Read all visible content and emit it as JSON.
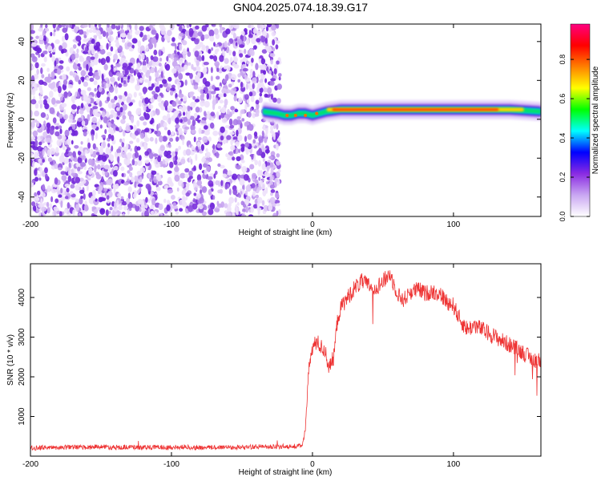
{
  "title": "GN04.2025.074.18.39.G17",
  "chart_data": [
    {
      "type": "heatmap",
      "xlabel": "Height of straight line (km)",
      "ylabel": "Frequency (Hz)",
      "xlim": [
        -200,
        162
      ],
      "ylim": [
        -50,
        49
      ],
      "x_ticks": [
        -200,
        -100,
        0,
        100
      ],
      "x_tick_labels": [
        "-200",
        "-100",
        "0",
        "100"
      ],
      "y_ticks": [
        -40,
        -20,
        0,
        20,
        40
      ],
      "y_tick_labels": [
        "-40",
        "-20",
        "0",
        "20",
        "40"
      ],
      "noise_region_x": [
        -200,
        -23
      ],
      "signal_band": {
        "x_start": -35,
        "x_end": 162,
        "frequency_points": [
          [
            -35,
            4
          ],
          [
            -25,
            3
          ],
          [
            -20,
            2
          ],
          [
            -15,
            2
          ],
          [
            -10,
            3
          ],
          [
            -5,
            3
          ],
          [
            0,
            2
          ],
          [
            5,
            3
          ],
          [
            10,
            4
          ],
          [
            20,
            5
          ],
          [
            40,
            5
          ],
          [
            60,
            5
          ],
          [
            80,
            5
          ],
          [
            100,
            5
          ],
          [
            120,
            5
          ],
          [
            140,
            5
          ],
          [
            162,
            4
          ]
        ]
      },
      "colorbar": {
        "label": "Normalized spectral amplitude",
        "range": [
          0,
          0.98
        ],
        "ticks": [
          0.0,
          0.2,
          0.4,
          0.6,
          0.8
        ],
        "tick_labels": [
          "0.0",
          "0.2",
          "0.4",
          "0.6",
          "0.8"
        ],
        "colors": [
          "#ffffff",
          "#c9a7f2",
          "#8a2be2",
          "#0000ff",
          "#00ffff",
          "#00ff00",
          "#ffff00",
          "#ff8000",
          "#ff0000",
          "#ff0080"
        ]
      }
    },
    {
      "type": "line",
      "xlabel": "Height of straight line (km)",
      "ylabel": "SNR (10 * v/v)",
      "xlim": [
        -200,
        162
      ],
      "ylim": [
        0,
        4850
      ],
      "x_ticks": [
        -200,
        -100,
        0,
        100
      ],
      "x_tick_labels": [
        "-200",
        "-100",
        "0",
        "100"
      ],
      "y_ticks": [
        1000,
        2000,
        3000,
        4000
      ],
      "y_tick_labels": [
        "1000",
        "2000",
        "3000",
        "4000"
      ],
      "series": [
        {
          "color": "#ee3333",
          "points": [
            [
              -200,
              200
            ],
            [
              -190,
              220
            ],
            [
              -180,
              210
            ],
            [
              -170,
              230
            ],
            [
              -160,
              220
            ],
            [
              -150,
              240
            ],
            [
              -140,
              220
            ],
            [
              -130,
              230
            ],
            [
              -120,
              210
            ],
            [
              -110,
              230
            ],
            [
              -100,
              220
            ],
            [
              -90,
              230
            ],
            [
              -80,
              210
            ],
            [
              -70,
              220
            ],
            [
              -60,
              230
            ],
            [
              -50,
              220
            ],
            [
              -40,
              240
            ],
            [
              -30,
              230
            ],
            [
              -20,
              250
            ],
            [
              -10,
              250
            ],
            [
              -7,
              280
            ],
            [
              -5,
              700
            ],
            [
              -4,
              1300
            ],
            [
              -3,
              1900
            ],
            [
              -2,
              2400
            ],
            [
              0,
              2700
            ],
            [
              3,
              2900
            ],
            [
              6,
              2750
            ],
            [
              9,
              2650
            ],
            [
              12,
              2200
            ],
            [
              15,
              2500
            ],
            [
              18,
              3500
            ],
            [
              21,
              3800
            ],
            [
              25,
              4000
            ],
            [
              30,
              4250
            ],
            [
              35,
              4400
            ],
            [
              40,
              4300
            ],
            [
              45,
              4250
            ],
            [
              50,
              4400
            ],
            [
              55,
              4600
            ],
            [
              58,
              4300
            ],
            [
              62,
              4000
            ],
            [
              65,
              3950
            ],
            [
              70,
              4150
            ],
            [
              75,
              4200
            ],
            [
              80,
              4100
            ],
            [
              85,
              4150
            ],
            [
              90,
              4100
            ],
            [
              95,
              3900
            ],
            [
              100,
              3800
            ],
            [
              105,
              3400
            ],
            [
              110,
              3200
            ],
            [
              115,
              3300
            ],
            [
              120,
              3200
            ],
            [
              125,
              3100
            ],
            [
              130,
              3000
            ],
            [
              135,
              2900
            ],
            [
              140,
              2800
            ],
            [
              145,
              2700
            ],
            [
              150,
              2600
            ],
            [
              155,
              2450
            ],
            [
              162,
              2400
            ]
          ]
        }
      ]
    }
  ]
}
